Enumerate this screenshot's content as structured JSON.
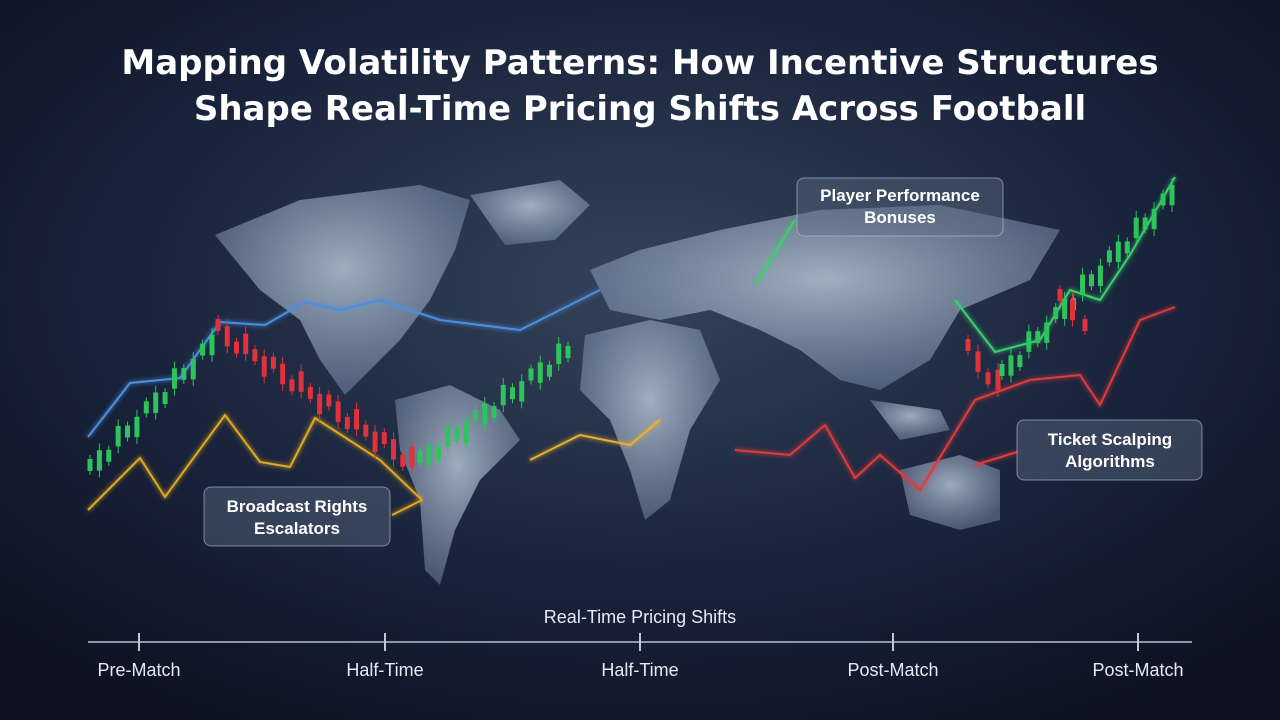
{
  "header": {
    "title_lines": [
      "Mapping Volatility Patterns: How Incentive Structures",
      "Shape Real-Time Pricing Shifts Across Football"
    ]
  },
  "callouts": [
    {
      "lines": [
        "Player Performance",
        "Bonuses"
      ]
    },
    {
      "lines": [
        "Broadcast Rights",
        "Escalators"
      ]
    },
    {
      "lines": [
        "Ticket Scalping",
        "Algorithms"
      ]
    }
  ],
  "timeline": {
    "label": "Real-Time Pricing Shifts",
    "ticks": [
      "Pre-Match",
      "Half-Time",
      "Half-Time",
      "Post-Match",
      "Post-Match"
    ]
  }
}
